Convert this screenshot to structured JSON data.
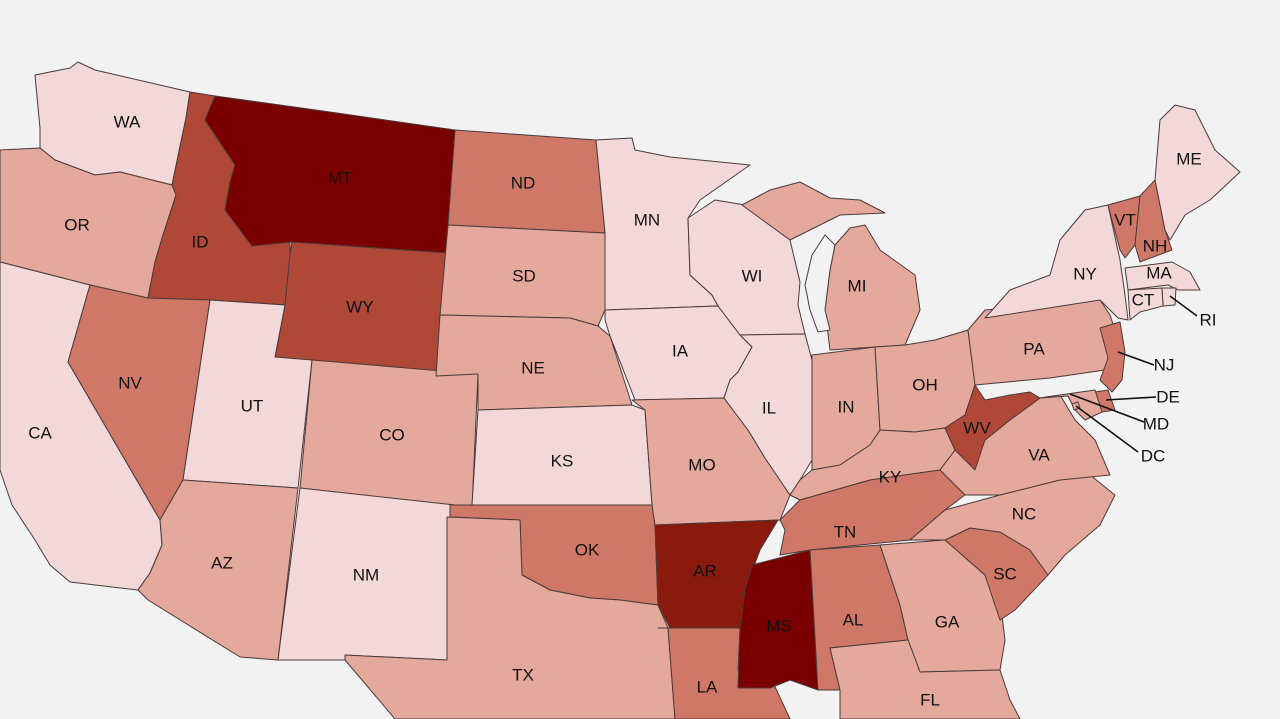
{
  "colors": {
    "background": "#f2f2f2",
    "level1": "#f2d8d8",
    "level2": "#e5a89c",
    "level3": "#d07868",
    "level4": "#b04838",
    "level5": "#8a1a0e",
    "level6": "#7a0000"
  },
  "states": [
    {
      "abbr": "WA",
      "level": 1
    },
    {
      "abbr": "OR",
      "level": 2
    },
    {
      "abbr": "CA",
      "level": 1
    },
    {
      "abbr": "ID",
      "level": 4
    },
    {
      "abbr": "NV",
      "level": 3
    },
    {
      "abbr": "MT",
      "level": 6
    },
    {
      "abbr": "WY",
      "level": 4
    },
    {
      "abbr": "UT",
      "level": 1
    },
    {
      "abbr": "AZ",
      "level": 2
    },
    {
      "abbr": "CO",
      "level": 2
    },
    {
      "abbr": "NM",
      "level": 1
    },
    {
      "abbr": "ND",
      "level": 3
    },
    {
      "abbr": "SD",
      "level": 2
    },
    {
      "abbr": "NE",
      "level": 2
    },
    {
      "abbr": "KS",
      "level": 1
    },
    {
      "abbr": "OK",
      "level": 3
    },
    {
      "abbr": "TX",
      "level": 2
    },
    {
      "abbr": "MN",
      "level": 1
    },
    {
      "abbr": "IA",
      "level": 1
    },
    {
      "abbr": "MO",
      "level": 2
    },
    {
      "abbr": "AR",
      "level": 5
    },
    {
      "abbr": "LA",
      "level": 3
    },
    {
      "abbr": "WI",
      "level": 1
    },
    {
      "abbr": "IL",
      "level": 1
    },
    {
      "abbr": "MI",
      "level": 2
    },
    {
      "abbr": "IN",
      "level": 2
    },
    {
      "abbr": "OH",
      "level": 2
    },
    {
      "abbr": "KY",
      "level": 2
    },
    {
      "abbr": "TN",
      "level": 3
    },
    {
      "abbr": "MS",
      "level": 6
    },
    {
      "abbr": "AL",
      "level": 3
    },
    {
      "abbr": "GA",
      "level": 2
    },
    {
      "abbr": "FL",
      "level": 2
    },
    {
      "abbr": "SC",
      "level": 3
    },
    {
      "abbr": "NC",
      "level": 2
    },
    {
      "abbr": "VA",
      "level": 2
    },
    {
      "abbr": "WV",
      "level": 4
    },
    {
      "abbr": "PA",
      "level": 2
    },
    {
      "abbr": "NY",
      "level": 1
    },
    {
      "abbr": "VT",
      "level": 3
    },
    {
      "abbr": "NH",
      "level": 3
    },
    {
      "abbr": "ME",
      "level": 1
    },
    {
      "abbr": "MA",
      "level": 1
    },
    {
      "abbr": "RI",
      "level": 1
    },
    {
      "abbr": "CT",
      "level": 1
    },
    {
      "abbr": "NJ",
      "level": 3
    },
    {
      "abbr": "DE",
      "level": 3
    },
    {
      "abbr": "MD",
      "level": 2
    },
    {
      "abbr": "DC",
      "level": 2
    }
  ]
}
